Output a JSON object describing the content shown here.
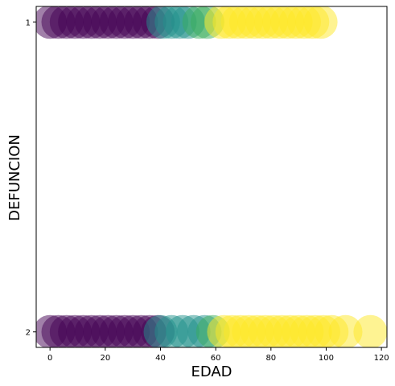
{
  "chart_data": {
    "type": "scatter",
    "title": "",
    "xlabel": "EDAD",
    "ylabel": "DEFUNCION",
    "xlim": [
      -5,
      122
    ],
    "ylim": [
      0.95,
      2.05
    ],
    "y_inverted": true,
    "xticks": [
      0,
      20,
      40,
      60,
      80,
      100,
      120
    ],
    "yticks": [
      1,
      2
    ],
    "grid": false,
    "legend": "none",
    "marker_alpha": 0.5,
    "colors": {
      "purple": "#440154",
      "teal": "#21918c",
      "green": "#3aae5c",
      "yellow": "#fde725"
    },
    "points": [
      {
        "x": 0,
        "y": 1,
        "c": "purple"
      },
      {
        "x": 3,
        "y": 1,
        "c": "purple"
      },
      {
        "x": 6,
        "y": 1,
        "c": "purple"
      },
      {
        "x": 9,
        "y": 1,
        "c": "purple"
      },
      {
        "x": 12,
        "y": 1,
        "c": "purple"
      },
      {
        "x": 15,
        "y": 1,
        "c": "purple"
      },
      {
        "x": 18,
        "y": 1,
        "c": "purple"
      },
      {
        "x": 21,
        "y": 1,
        "c": "purple"
      },
      {
        "x": 24,
        "y": 1,
        "c": "purple"
      },
      {
        "x": 27,
        "y": 1,
        "c": "purple"
      },
      {
        "x": 30,
        "y": 1,
        "c": "purple"
      },
      {
        "x": 33,
        "y": 1,
        "c": "purple"
      },
      {
        "x": 36,
        "y": 1,
        "c": "purple"
      },
      {
        "x": 39,
        "y": 1,
        "c": "purple"
      },
      {
        "x": 41,
        "y": 1,
        "c": "teal"
      },
      {
        "x": 44,
        "y": 1,
        "c": "teal"
      },
      {
        "x": 47,
        "y": 1,
        "c": "teal"
      },
      {
        "x": 50,
        "y": 1,
        "c": "teal"
      },
      {
        "x": 54,
        "y": 1,
        "c": "green"
      },
      {
        "x": 57,
        "y": 1,
        "c": "green"
      },
      {
        "x": 62,
        "y": 1,
        "c": "yellow"
      },
      {
        "x": 65,
        "y": 1,
        "c": "yellow"
      },
      {
        "x": 68,
        "y": 1,
        "c": "yellow"
      },
      {
        "x": 71,
        "y": 1,
        "c": "yellow"
      },
      {
        "x": 74,
        "y": 1,
        "c": "yellow"
      },
      {
        "x": 77,
        "y": 1,
        "c": "yellow"
      },
      {
        "x": 80,
        "y": 1,
        "c": "yellow"
      },
      {
        "x": 83,
        "y": 1,
        "c": "yellow"
      },
      {
        "x": 86,
        "y": 1,
        "c": "yellow"
      },
      {
        "x": 89,
        "y": 1,
        "c": "yellow"
      },
      {
        "x": 92,
        "y": 1,
        "c": "yellow"
      },
      {
        "x": 95,
        "y": 1,
        "c": "yellow"
      },
      {
        "x": 98,
        "y": 1,
        "c": "yellow"
      },
      {
        "x": 0,
        "y": 2,
        "c": "purple"
      },
      {
        "x": 3,
        "y": 2,
        "c": "purple"
      },
      {
        "x": 6,
        "y": 2,
        "c": "purple"
      },
      {
        "x": 9,
        "y": 2,
        "c": "purple"
      },
      {
        "x": 12,
        "y": 2,
        "c": "purple"
      },
      {
        "x": 15,
        "y": 2,
        "c": "purple"
      },
      {
        "x": 18,
        "y": 2,
        "c": "purple"
      },
      {
        "x": 21,
        "y": 2,
        "c": "purple"
      },
      {
        "x": 24,
        "y": 2,
        "c": "purple"
      },
      {
        "x": 27,
        "y": 2,
        "c": "purple"
      },
      {
        "x": 30,
        "y": 2,
        "c": "purple"
      },
      {
        "x": 33,
        "y": 2,
        "c": "purple"
      },
      {
        "x": 36,
        "y": 2,
        "c": "purple"
      },
      {
        "x": 39,
        "y": 2,
        "c": "purple"
      },
      {
        "x": 40,
        "y": 2,
        "c": "teal"
      },
      {
        "x": 44,
        "y": 2,
        "c": "teal"
      },
      {
        "x": 48,
        "y": 2,
        "c": "teal"
      },
      {
        "x": 52,
        "y": 2,
        "c": "teal"
      },
      {
        "x": 56,
        "y": 2,
        "c": "teal"
      },
      {
        "x": 59,
        "y": 2,
        "c": "green"
      },
      {
        "x": 63,
        "y": 2,
        "c": "yellow"
      },
      {
        "x": 66,
        "y": 2,
        "c": "yellow"
      },
      {
        "x": 69,
        "y": 2,
        "c": "yellow"
      },
      {
        "x": 72,
        "y": 2,
        "c": "yellow"
      },
      {
        "x": 75,
        "y": 2,
        "c": "yellow"
      },
      {
        "x": 78,
        "y": 2,
        "c": "yellow"
      },
      {
        "x": 81,
        "y": 2,
        "c": "yellow"
      },
      {
        "x": 84,
        "y": 2,
        "c": "yellow"
      },
      {
        "x": 87,
        "y": 2,
        "c": "yellow"
      },
      {
        "x": 90,
        "y": 2,
        "c": "yellow"
      },
      {
        "x": 93,
        "y": 2,
        "c": "yellow"
      },
      {
        "x": 96,
        "y": 2,
        "c": "yellow"
      },
      {
        "x": 99,
        "y": 2,
        "c": "yellow"
      },
      {
        "x": 102,
        "y": 2,
        "c": "yellow"
      },
      {
        "x": 107,
        "y": 2,
        "c": "yellow"
      },
      {
        "x": 116,
        "y": 2,
        "c": "yellow"
      }
    ]
  }
}
